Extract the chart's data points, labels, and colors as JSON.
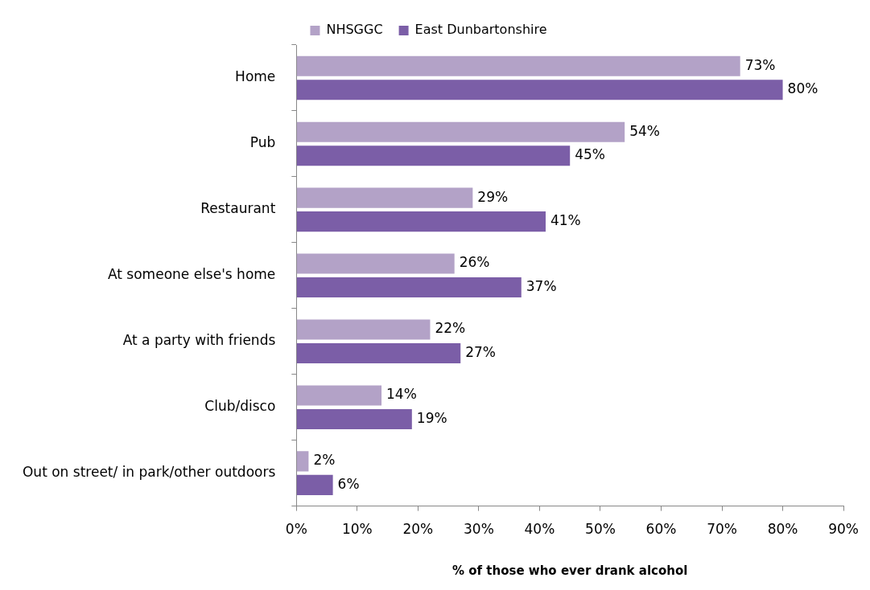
{
  "chart_data": {
    "type": "bar",
    "orientation": "horizontal",
    "xlabel": "% of those who ever drank alcohol",
    "categories": [
      "Home",
      "Pub",
      "Restaurant",
      "At someone else's home",
      "At a party with friends",
      "Club/disco",
      "Out on street/ in park/other outdoors"
    ],
    "series": [
      {
        "name": "NHSGGC",
        "color": "#b3a2c7",
        "values": [
          73,
          54,
          29,
          26,
          22,
          14,
          2
        ],
        "value_labels": [
          "73%",
          "54%",
          "29%",
          "26%",
          "22%",
          "14%",
          "2%"
        ]
      },
      {
        "name": "East Dunbartonshire",
        "color": "#7b5ea7",
        "values": [
          80,
          45,
          41,
          37,
          27,
          19,
          6
        ],
        "value_labels": [
          "80%",
          "45%",
          "41%",
          "37%",
          "27%",
          "19%",
          "6%"
        ]
      }
    ],
    "xlim": [
      0,
      90
    ],
    "xticks": [
      {
        "value": 0,
        "label": "0%"
      },
      {
        "value": 10,
        "label": "10%"
      },
      {
        "value": 20,
        "label": "20%"
      },
      {
        "value": 30,
        "label": "30%"
      },
      {
        "value": 40,
        "label": "40%"
      },
      {
        "value": 50,
        "label": "50%"
      },
      {
        "value": 60,
        "label": "60%"
      },
      {
        "value": 70,
        "label": "70%"
      },
      {
        "value": 80,
        "label": "80%"
      },
      {
        "value": 90,
        "label": "90%"
      }
    ],
    "grid": false,
    "legend": "top"
  }
}
